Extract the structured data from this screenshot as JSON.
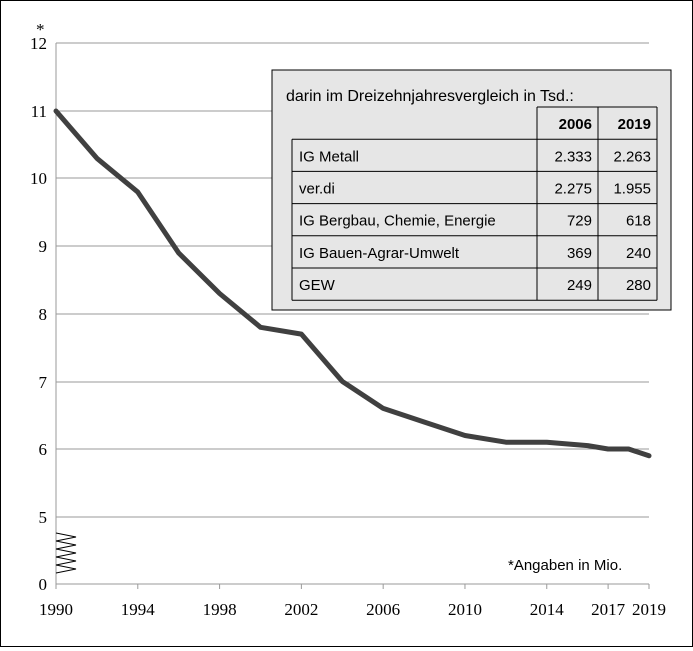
{
  "chart_data": {
    "type": "line",
    "x": [
      1990,
      1992,
      1994,
      1996,
      1998,
      2000,
      2002,
      2004,
      2006,
      2008,
      2010,
      2012,
      2014,
      2016,
      2017,
      2018,
      2019
    ],
    "series": [
      {
        "values": [
          11.0,
          10.3,
          9.8,
          8.9,
          8.3,
          7.8,
          7.7,
          7.0,
          6.6,
          6.4,
          6.2,
          6.1,
          6.1,
          6.05,
          6.0,
          6.0,
          5.9
        ]
      }
    ],
    "x_ticks": [
      "1990",
      "1994",
      "1998",
      "2002",
      "2006",
      "2010",
      "2014",
      "2017",
      "2019"
    ],
    "y_ticks": [
      "0",
      "5",
      "6",
      "7",
      "8",
      "9",
      "10",
      "11",
      "12"
    ],
    "y_top_marker": "*",
    "ylim": [
      4.5,
      12
    ],
    "axis_break": true,
    "grid": true,
    "line_color": "#404040",
    "footnote": "*Angaben in Mio."
  },
  "table": {
    "title": "darin im Dreizehnjahresvergleich in Tsd.:",
    "columns": [
      "2006",
      "2019"
    ],
    "rows": [
      {
        "label": "IG Metall",
        "values": [
          "2.333",
          "2.263"
        ]
      },
      {
        "label": "ver.di",
        "values": [
          "2.275",
          "1.955"
        ]
      },
      {
        "label": "IG Bergbau, Chemie, Energie",
        "values": [
          "729",
          "618"
        ]
      },
      {
        "label": "IG Bauen-Agrar-Umwelt",
        "values": [
          "369",
          "240"
        ]
      },
      {
        "label": "GEW",
        "values": [
          "249",
          "280"
        ]
      }
    ],
    "panel_color": "#e6e6e6"
  }
}
